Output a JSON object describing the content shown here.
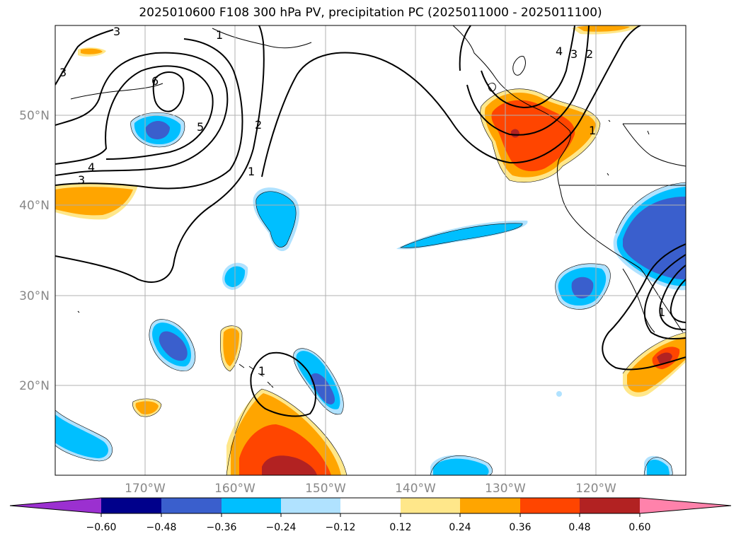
{
  "title": "2025010600 F108 300 hPa PV, precipitation PC (2025011000 - 2025011100)",
  "map": {
    "projection": "plate-carree",
    "lon_range": [
      "-180",
      "-110"
    ],
    "lat_range": [
      "10",
      "60"
    ],
    "lat_labels": [
      "50°N",
      "40°N",
      "30°N",
      "20°N"
    ],
    "lon_labels": [
      "170°W",
      "160°W",
      "150°W",
      "140°W",
      "130°W",
      "120°W"
    ],
    "contour_labels": [
      "3",
      "1",
      "3",
      "6",
      "5",
      "2",
      "1",
      "4",
      "3",
      "1",
      "1",
      "2",
      "3",
      "4",
      "1"
    ]
  },
  "colorbar": {
    "ticks": [
      "−0.60",
      "−0.48",
      "−0.36",
      "−0.24",
      "−0.12",
      "0.12",
      "0.24",
      "0.36",
      "0.48",
      "0.60"
    ],
    "colors": [
      "#9b30d0",
      "#00008b",
      "#3a5fcd",
      "#00bfff",
      "#b0e2ff",
      "#ffffff",
      "#ffe78a",
      "#ffa500",
      "#ff4500",
      "#b22222",
      "#ff82ab"
    ]
  }
}
